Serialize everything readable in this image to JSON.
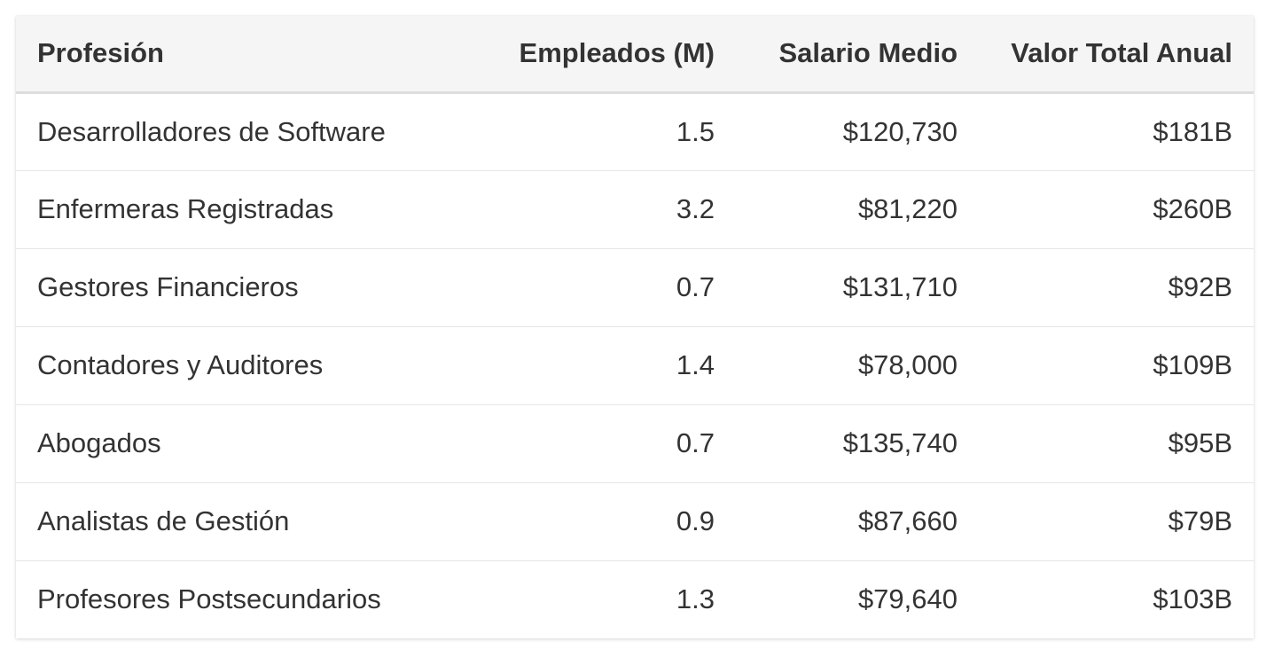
{
  "table": {
    "headers": [
      "Profesión",
      "Empleados (M)",
      "Salario Medio",
      "Valor Total Anual"
    ],
    "rows": [
      [
        "Desarrolladores de Software",
        "1.5",
        "$120,730",
        "$181B"
      ],
      [
        "Enfermeras Registradas",
        "3.2",
        "$81,220",
        "$260B"
      ],
      [
        "Gestores Financieros",
        "0.7",
        "$131,710",
        "$92B"
      ],
      [
        "Contadores y Auditores",
        "1.4",
        "$78,000",
        "$109B"
      ],
      [
        "Abogados",
        "0.7",
        "$135,740",
        "$95B"
      ],
      [
        "Analistas de Gestión",
        "0.9",
        "$87,660",
        "$79B"
      ],
      [
        "Profesores Postsecundarios",
        "1.3",
        "$79,640",
        "$103B"
      ]
    ]
  }
}
